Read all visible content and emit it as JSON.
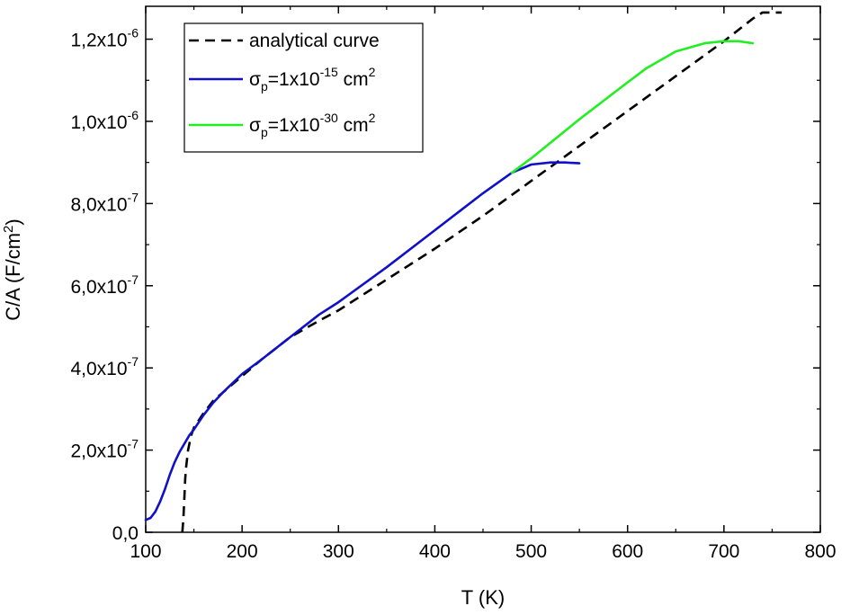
{
  "chart_data": {
    "type": "line",
    "title": "",
    "xlabel": "T (K)",
    "ylabel": "C/A (F/cm²)",
    "xlim": [
      100,
      800
    ],
    "ylim": [
      0,
      1.28e-06
    ],
    "x_ticks": [
      100,
      200,
      300,
      400,
      500,
      600,
      700,
      800
    ],
    "x_tick_labels": [
      "100",
      "200",
      "300",
      "400",
      "500",
      "600",
      "700",
      "800"
    ],
    "y_ticks": [
      0,
      2e-07,
      4e-07,
      6e-07,
      8e-07,
      1e-06,
      1.2e-06
    ],
    "y_tick_labels": [
      {
        "mantissa": "0,0",
        "exponent": ""
      },
      {
        "mantissa": "2,0x10",
        "exponent": "-7"
      },
      {
        "mantissa": "4,0x10",
        "exponent": "-7"
      },
      {
        "mantissa": "6,0x10",
        "exponent": "-7"
      },
      {
        "mantissa": "8,0x10",
        "exponent": "-7"
      },
      {
        "mantissa": "1,0x10",
        "exponent": "-6"
      },
      {
        "mantissa": "1,2x10",
        "exponent": "-6"
      }
    ],
    "grid": false,
    "legend_position": "top-left",
    "series": [
      {
        "name": "analytical curve",
        "color": "#000000",
        "dash": true,
        "x": [
          138,
          139,
          140,
          141,
          142,
          144,
          147,
          150,
          160,
          170,
          180,
          200,
          220,
          250,
          280,
          300,
          350,
          400,
          450,
          500,
          550,
          600,
          650,
          700,
          730,
          740,
          760
        ],
        "y": [
          0,
          3e-08,
          8e-08,
          1.3e-07,
          1.6e-07,
          2e-07,
          2.35e-07,
          2.55e-07,
          2.9e-07,
          3.2e-07,
          3.4e-07,
          3.8e-07,
          4.2e-07,
          4.75e-07,
          5.15e-07,
          5.4e-07,
          6.15e-07,
          6.9e-07,
          7.7e-07,
          8.55e-07,
          9.4e-07,
          1.025e-06,
          1.11e-06,
          1.195e-06,
          1.25e-06,
          1.265e-06,
          1.265e-06
        ]
      },
      {
        "name": "σp=1x10-15 cm2",
        "legend": {
          "pre": "σ",
          "sub": "p",
          "mid": "=1x10",
          "sup": "-15",
          "post": " cm",
          "sup2": "2"
        },
        "color": "#1010c8",
        "dash": false,
        "x": [
          100,
          105,
          110,
          115,
          120,
          125,
          130,
          135,
          140,
          145,
          150,
          160,
          170,
          180,
          200,
          220,
          250,
          280,
          300,
          350,
          400,
          450,
          480,
          500,
          520,
          535,
          550
        ],
        "y": [
          3e-08,
          3.5e-08,
          5e-08,
          7.5e-08,
          1.05e-07,
          1.4e-07,
          1.7e-07,
          1.95e-07,
          2.15e-07,
          2.35e-07,
          2.5e-07,
          2.85e-07,
          3.15e-07,
          3.4e-07,
          3.85e-07,
          4.2e-07,
          4.75e-07,
          5.3e-07,
          5.6e-07,
          6.45e-07,
          7.35e-07,
          8.25e-07,
          8.75e-07,
          8.95e-07,
          9e-07,
          9e-07,
          8.98e-07
        ]
      },
      {
        "name": "σp=1x10-30 cm2",
        "legend": {
          "pre": "σ",
          "sub": "p",
          "mid": "=1x10",
          "sup": "-30",
          "post": " cm",
          "sup2": "2"
        },
        "color": "#22ee22",
        "dash": false,
        "x": [
          480,
          500,
          550,
          600,
          620,
          650,
          680,
          700,
          715,
          730
        ],
        "y": [
          8.75e-07,
          9.1e-07,
          1.005e-06,
          1.095e-06,
          1.13e-06,
          1.17e-06,
          1.19e-06,
          1.195e-06,
          1.195e-06,
          1.19e-06
        ]
      }
    ]
  }
}
